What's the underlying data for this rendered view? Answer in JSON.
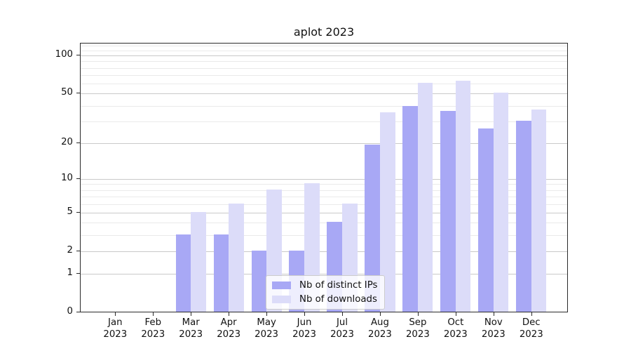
{
  "chart_data": {
    "type": "bar",
    "title": "aplot 2023",
    "categories": [
      "Jan",
      "Feb",
      "Mar",
      "Apr",
      "May",
      "Jun",
      "Jul",
      "Aug",
      "Sep",
      "Oct",
      "Nov",
      "Dec"
    ],
    "x_tick_second_line": "2023",
    "series": [
      {
        "name": "Nb of distinct IPs",
        "color": "#a8a8f5",
        "values": [
          0,
          0,
          3,
          3,
          2,
          2,
          4,
          19,
          39,
          36,
          26,
          30
        ]
      },
      {
        "name": "Nb of downloads",
        "color": "#dcdcf9",
        "values": [
          0,
          0,
          5,
          6,
          8,
          9,
          6,
          35,
          60,
          62,
          50,
          37
        ]
      }
    ],
    "xlabel": "",
    "ylabel": "",
    "yscale": "log1p",
    "ylim": [
      0,
      125
    ],
    "y_major_ticks": [
      0,
      1,
      2,
      5,
      10,
      20,
      50,
      100
    ],
    "y_minor_ticks": [
      3,
      4,
      6,
      7,
      8,
      9,
      30,
      40,
      60,
      70,
      80,
      90,
      110,
      120
    ],
    "grid": true,
    "legend_position": "lower center",
    "colors": {
      "major_grid": "#c9c9c9",
      "minor_grid": "#eaeaea",
      "spine": "#2a2a2a",
      "text": "#111111",
      "legend_border": "#cccccc"
    }
  }
}
